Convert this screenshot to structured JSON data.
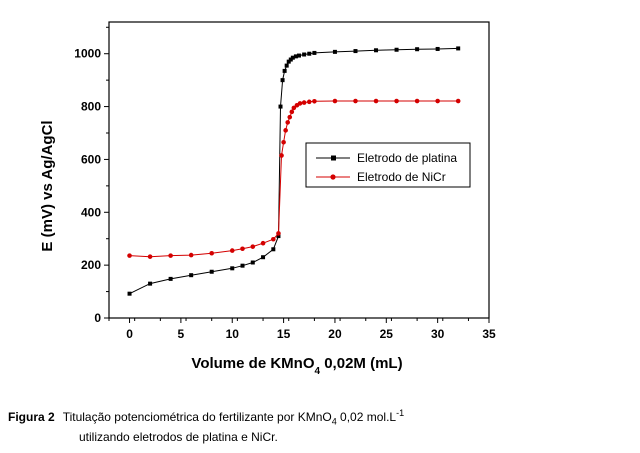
{
  "chart_data": {
    "type": "line",
    "xlabel_main": "Volume de KMnO",
    "xlabel_sub": "4",
    "xlabel_rest": " 0,02M (mL)",
    "ylabel": "E (mV) vs Ag/AgCl",
    "xlim": [
      -2,
      35
    ],
    "ylim": [
      0,
      1120
    ],
    "x_ticks": [
      0,
      5,
      10,
      15,
      20,
      25,
      30,
      35
    ],
    "y_ticks": [
      0,
      200,
      400,
      600,
      800,
      1000
    ],
    "grid": false,
    "legend_position": "center-right",
    "series": [
      {
        "name": "Eletrodo de platina",
        "color": "#000000",
        "marker": "square",
        "x": [
          0,
          2,
          4,
          6,
          8,
          10,
          11,
          12,
          13,
          14,
          14.5,
          14.7,
          14.9,
          15.1,
          15.3,
          15.5,
          15.7,
          15.9,
          16.2,
          16.5,
          17,
          17.5,
          18,
          20,
          22,
          24,
          26,
          28,
          30,
          32
        ],
        "y": [
          92,
          130,
          148,
          162,
          175,
          188,
          198,
          210,
          230,
          260,
          310,
          800,
          900,
          935,
          955,
          970,
          978,
          985,
          990,
          993,
          997,
          1000,
          1003,
          1007,
          1010,
          1013,
          1015,
          1017,
          1018,
          1020
        ]
      },
      {
        "name": "Eletrodo de NiCr",
        "color": "#d40000",
        "marker": "circle",
        "x": [
          0,
          2,
          4,
          6,
          8,
          10,
          11,
          12,
          13,
          14,
          14.5,
          14.8,
          15.0,
          15.2,
          15.4,
          15.6,
          15.8,
          16.0,
          16.3,
          16.6,
          17,
          17.5,
          18,
          20,
          22,
          24,
          26,
          28,
          30,
          32
        ],
        "y": [
          236,
          232,
          236,
          238,
          245,
          255,
          262,
          270,
          283,
          298,
          320,
          615,
          665,
          710,
          740,
          760,
          780,
          795,
          805,
          812,
          815,
          818,
          820,
          821,
          821,
          821,
          821,
          821,
          821,
          821
        ]
      }
    ]
  },
  "caption": {
    "label": "Figura 2",
    "text_line1_a": "Titulação potenciométrica do fertilizante por KMnO",
    "text_line1_sub": "4",
    "text_line1_b": " 0,02 mol.L",
    "text_line1_sup": "-1",
    "text_line2": "utilizando eletrodos de platina e NiCr."
  }
}
